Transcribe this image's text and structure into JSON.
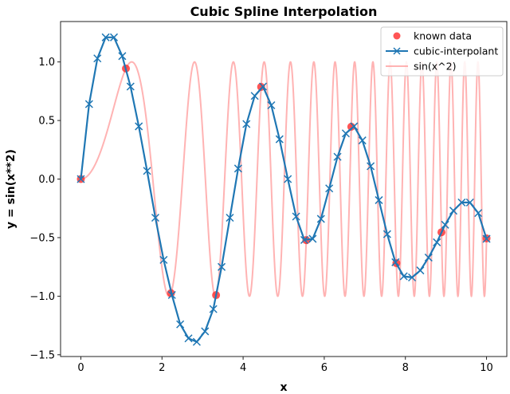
{
  "chart_data": {
    "type": "line",
    "title": "Cubic Spline Interpolation",
    "xlabel": "x",
    "ylabel": "y = sin(x**2)",
    "xlim": [
      -0.5,
      10.5
    ],
    "ylim": [
      -1.515,
      1.345
    ],
    "xticks": [
      0,
      2,
      4,
      6,
      8,
      10
    ],
    "xtick_labels": [
      "0",
      "2",
      "4",
      "6",
      "8",
      "10"
    ],
    "yticks": [
      -1.5,
      -1.0,
      -0.5,
      0.0,
      0.5,
      1.0
    ],
    "ytick_labels": [
      "−1.5",
      "−1.0",
      "−0.5",
      "0.0",
      "0.5",
      "1.0"
    ],
    "grid": false,
    "legend_position": "top-right",
    "series": [
      {
        "name": "known data",
        "kind": "scatter",
        "color": "#ff2a2a",
        "x": [
          0,
          1.111,
          2.222,
          3.333,
          4.444,
          5.556,
          6.667,
          7.778,
          8.889,
          10
        ],
        "y": [
          0,
          0.944,
          -0.974,
          -0.991,
          0.787,
          -0.522,
          0.447,
          -0.718,
          -0.454,
          -0.506
        ]
      },
      {
        "name": "cubic-interpolant",
        "kind": "line-markers",
        "color": "#1f77b4",
        "x_range": [
          0,
          10
        ],
        "y": [
          0,
          0.64,
          1.03,
          1.21,
          1.21,
          1.05,
          0.79,
          0.45,
          0.07,
          -0.33,
          -0.69,
          -0.99,
          -1.24,
          -1.36,
          -1.39,
          -1.3,
          -1.11,
          -0.75,
          -0.33,
          0.09,
          0.47,
          0.71,
          0.79,
          0.63,
          0.34,
          0.0,
          -0.32,
          -0.52,
          -0.51,
          -0.34,
          -0.08,
          0.19,
          0.39,
          0.45,
          0.33,
          0.11,
          -0.18,
          -0.47,
          -0.71,
          -0.83,
          -0.84,
          -0.78,
          -0.67,
          -0.54,
          -0.39,
          -0.27,
          -0.2,
          -0.2,
          -0.29,
          -0.51
        ]
      },
      {
        "name": "sin(x^2)",
        "kind": "line",
        "color": "#ff9999",
        "function": "sin(x^2)",
        "x_range": [
          0,
          10
        ]
      }
    ]
  }
}
